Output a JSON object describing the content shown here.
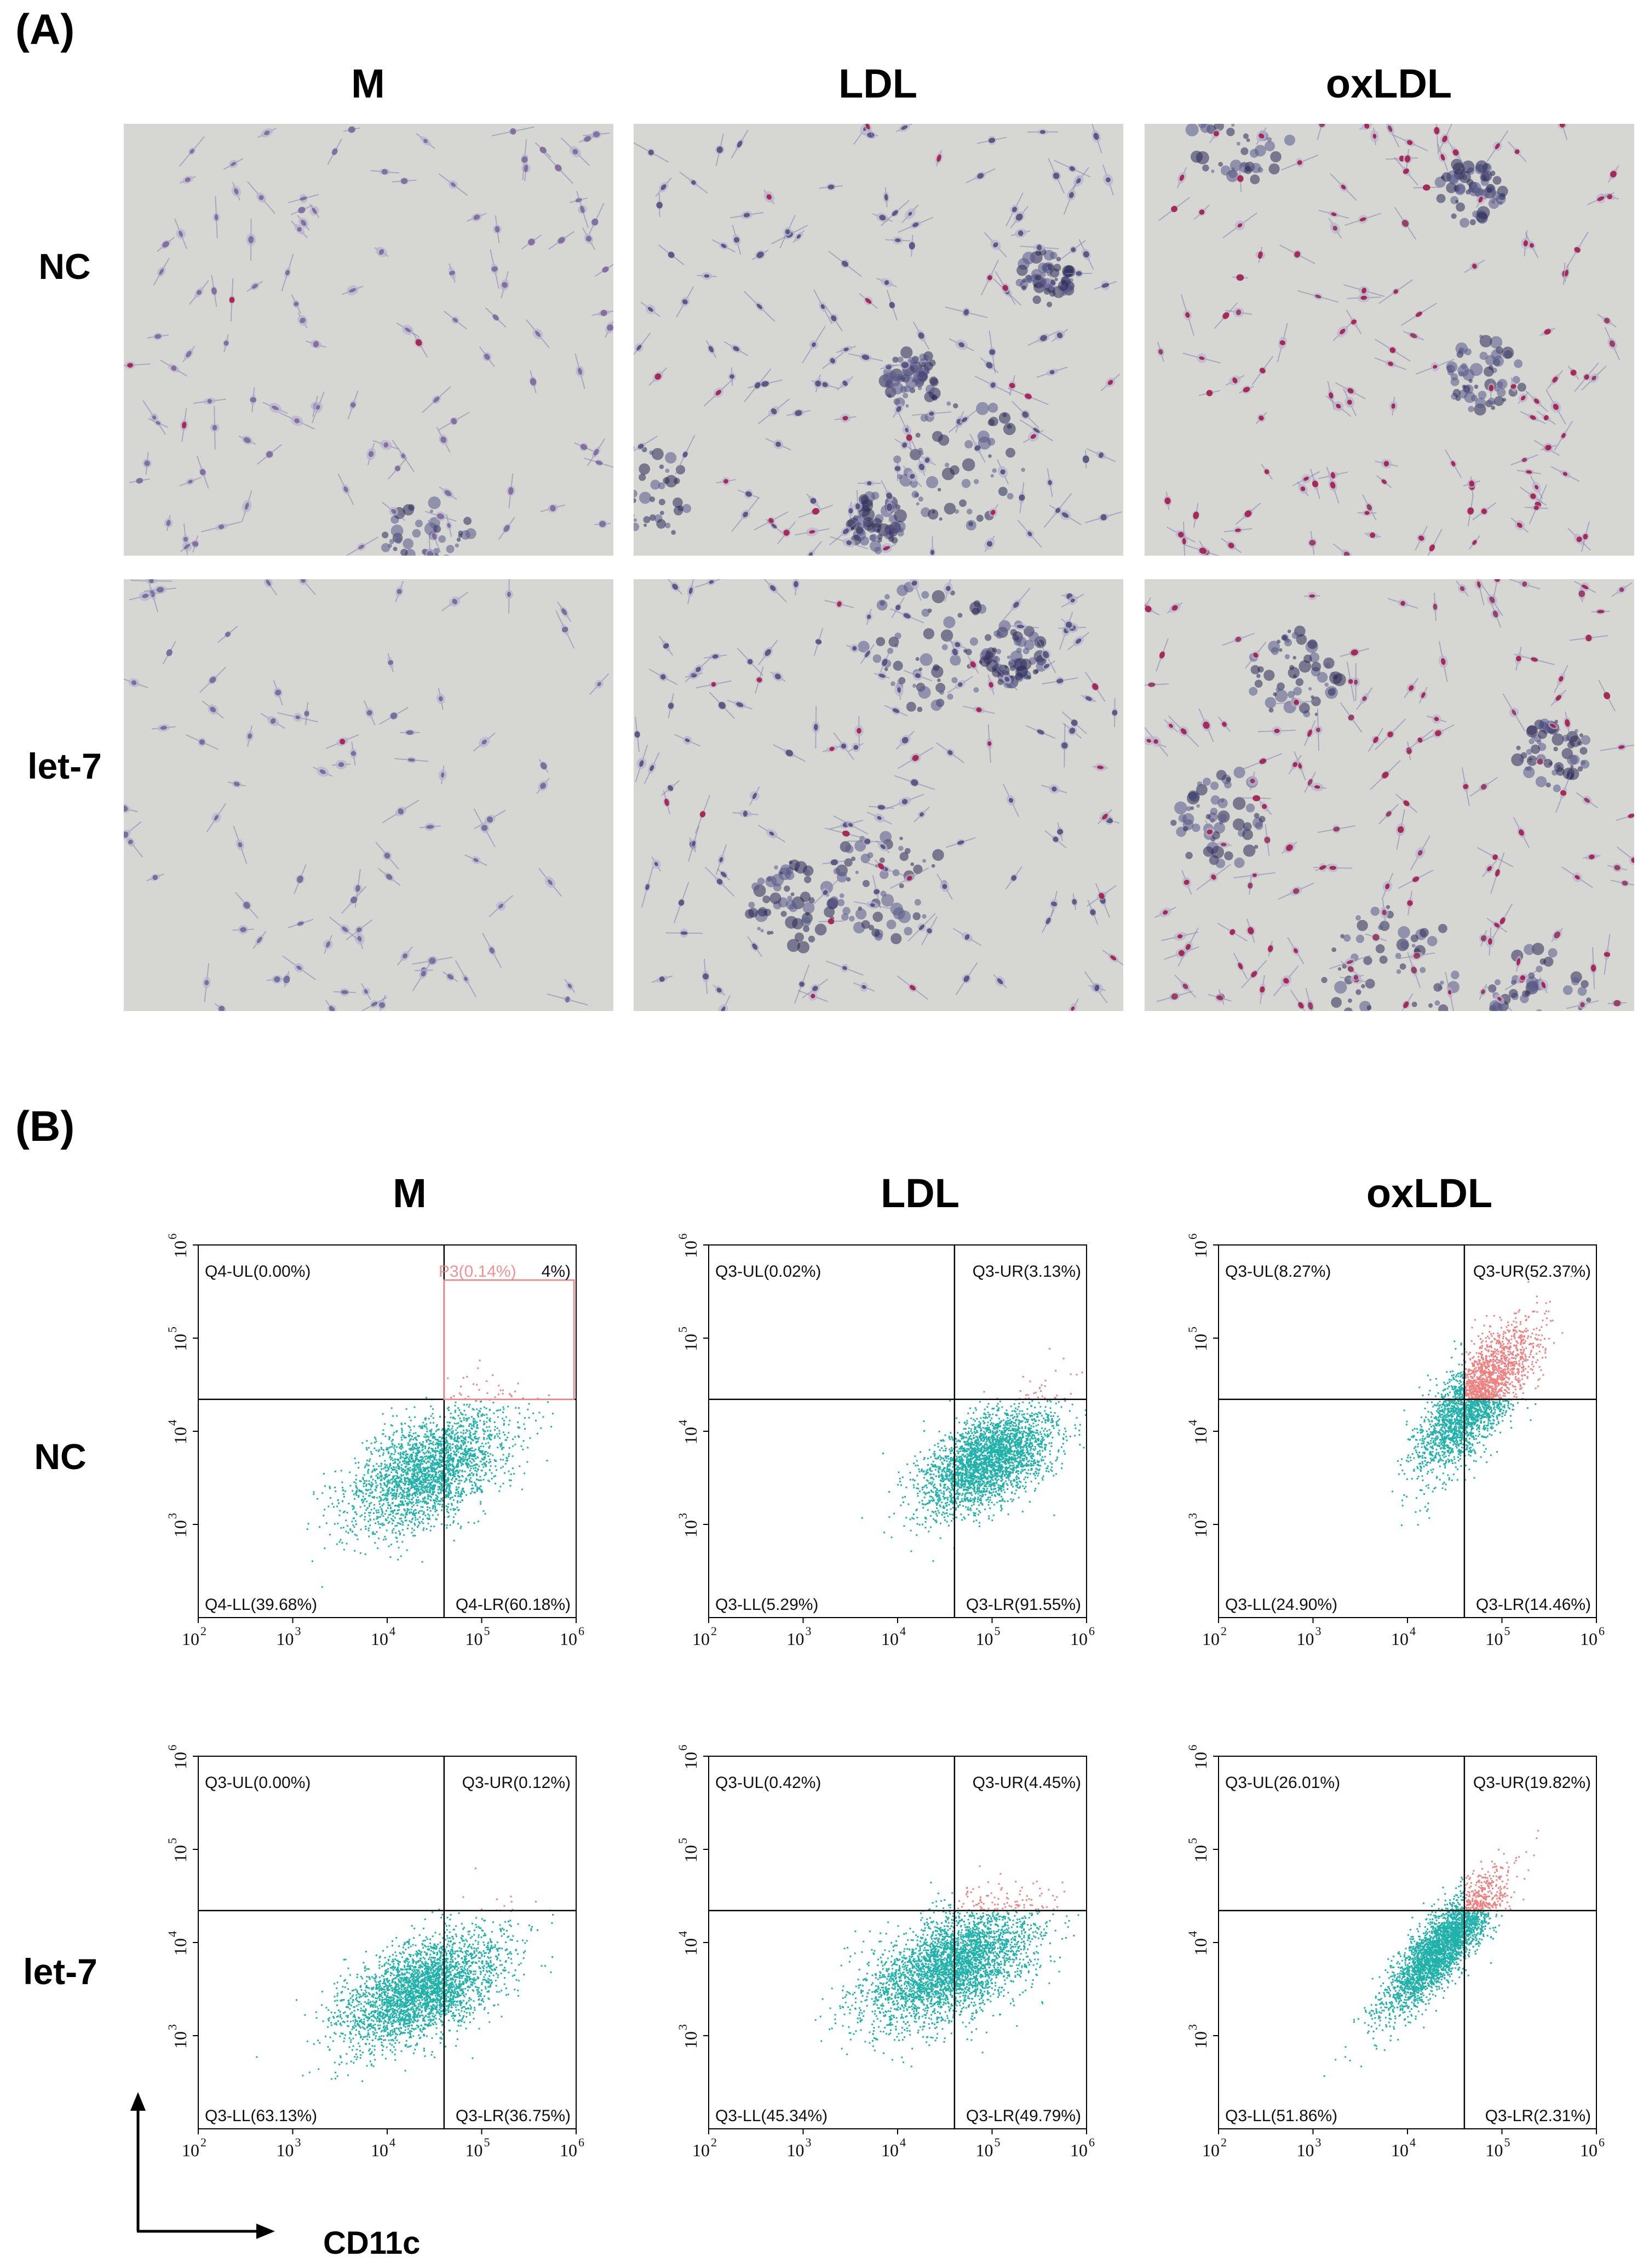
{
  "panels": {
    "a_label": "(A)",
    "b_label": "(B)"
  },
  "columns": [
    "M",
    "LDL",
    "oxLDL"
  ],
  "rows": [
    "NC",
    "let-7"
  ],
  "micrographs": [
    {
      "row": "NC",
      "col": "M",
      "stain_intensity": 0.05,
      "cluster": 0.2,
      "density": 0.8,
      "tint": "#6c5a8e"
    },
    {
      "row": "NC",
      "col": "LDL",
      "stain_intensity": 0.15,
      "cluster": 0.8,
      "density": 1.0,
      "tint": "#3e3a6a"
    },
    {
      "row": "NC",
      "col": "oxLDL",
      "stain_intensity": 0.9,
      "cluster": 0.5,
      "density": 0.9,
      "tint": "#8c1a40"
    },
    {
      "row": "let-7",
      "col": "M",
      "stain_intensity": 0.02,
      "cluster": 0.0,
      "density": 0.6,
      "tint": "#5e5a8a"
    },
    {
      "row": "let-7",
      "col": "LDL",
      "stain_intensity": 0.12,
      "cluster": 0.7,
      "density": 1.0,
      "tint": "#3e3a6a"
    },
    {
      "row": "let-7",
      "col": "oxLDL",
      "stain_intensity": 0.7,
      "cluster": 0.8,
      "density": 1.0,
      "tint": "#8c1a40"
    }
  ],
  "colors": {
    "population": "#20b2aa",
    "gated": "#f08080",
    "gate_box": "#f08080",
    "axis": "#000000"
  },
  "chart_data": {
    "type": "scatter",
    "xlabel": "CD11c",
    "xlim_log10": [
      2,
      6
    ],
    "ylim_log10": [
      2,
      6
    ],
    "x_ticks": [
      "10",
      "10",
      "10",
      "10",
      "10"
    ],
    "x_tick_exponents": [
      "2",
      "3",
      "4",
      "5",
      "6"
    ],
    "y_ticks": [
      "10",
      "10",
      "10",
      "10"
    ],
    "y_tick_exponents": [
      "3",
      "4",
      "5",
      "6"
    ],
    "plots": [
      {
        "row": "NC",
        "col": "M",
        "quadrant_x": 40000,
        "quadrant_y": 22000,
        "labels": {
          "UL": "Q4-UL(0.00%)",
          "UR": "",
          "LL": "Q4-LL(39.68%)",
          "LR": "Q4-LR(60.18%)"
        },
        "gate": {
          "label": "P3(0.14%)",
          "label_suffix": "4%)",
          "x_range": [
            40000,
            950000
          ],
          "y_range": [
            22000,
            420000
          ]
        },
        "cloud": {
          "cx_log10": 4.45,
          "cy_log10": 3.6,
          "sx": 0.42,
          "sy": 0.33,
          "rho": 0.55,
          "n": 2600
        }
      },
      {
        "row": "NC",
        "col": "LDL",
        "quadrant_x": 40000,
        "quadrant_y": 22000,
        "labels": {
          "UL": "Q3-UL(0.02%)",
          "UR": "Q3-UR(3.13%)",
          "LL": "Q3-LL(5.29%)",
          "LR": "Q3-LR(91.55%)"
        },
        "cloud": {
          "cx_log10": 4.95,
          "cy_log10": 3.7,
          "sx": 0.35,
          "sy": 0.28,
          "rho": 0.55,
          "n": 3000
        }
      },
      {
        "row": "NC",
        "col": "oxLDL",
        "quadrant_x": 40000,
        "quadrant_y": 22000,
        "labels": {
          "UL": "Q3-UL(8.27%)",
          "UR": "Q3-UR(52.37%)",
          "LL": "Q3-LL(24.90%)",
          "LR": "Q3-LR(14.46%)"
        },
        "cloud": {
          "cx_log10": 4.7,
          "cy_log10": 4.35,
          "sx": 0.3,
          "sy": 0.38,
          "rho": 0.75,
          "n": 2800
        }
      },
      {
        "row": "let-7",
        "col": "M",
        "quadrant_x": 40000,
        "quadrant_y": 22000,
        "labels": {
          "UL": "Q3-UL(0.00%)",
          "UR": "Q3-UR(0.12%)",
          "LL": "Q3-LL(63.13%)",
          "LR": "Q3-LR(36.75%)"
        },
        "cloud": {
          "cx_log10": 4.35,
          "cy_log10": 3.5,
          "sx": 0.42,
          "sy": 0.3,
          "rho": 0.55,
          "n": 3200
        }
      },
      {
        "row": "let-7",
        "col": "LDL",
        "quadrant_x": 40000,
        "quadrant_y": 22000,
        "labels": {
          "UL": "Q3-UL(0.42%)",
          "UR": "Q3-UR(4.45%)",
          "LL": "Q3-LL(45.34%)",
          "LR": "Q3-LR(49.79%)"
        },
        "cloud": {
          "cx_log10": 4.55,
          "cy_log10": 3.75,
          "sx": 0.45,
          "sy": 0.32,
          "rho": 0.55,
          "n": 3600
        }
      },
      {
        "row": "let-7",
        "col": "oxLDL",
        "quadrant_x": 40000,
        "quadrant_y": 22000,
        "labels": {
          "UL": "Q3-UL(26.01%)",
          "UR": "Q3-UR(19.82%)",
          "LL": "Q3-LL(51.86%)",
          "LR": "Q3-LR(2.31%)"
        },
        "cloud": {
          "cx_log10": 4.35,
          "cy_log10": 3.95,
          "sx": 0.3,
          "sy": 0.35,
          "rho": 0.85,
          "n": 3200
        }
      }
    ]
  }
}
